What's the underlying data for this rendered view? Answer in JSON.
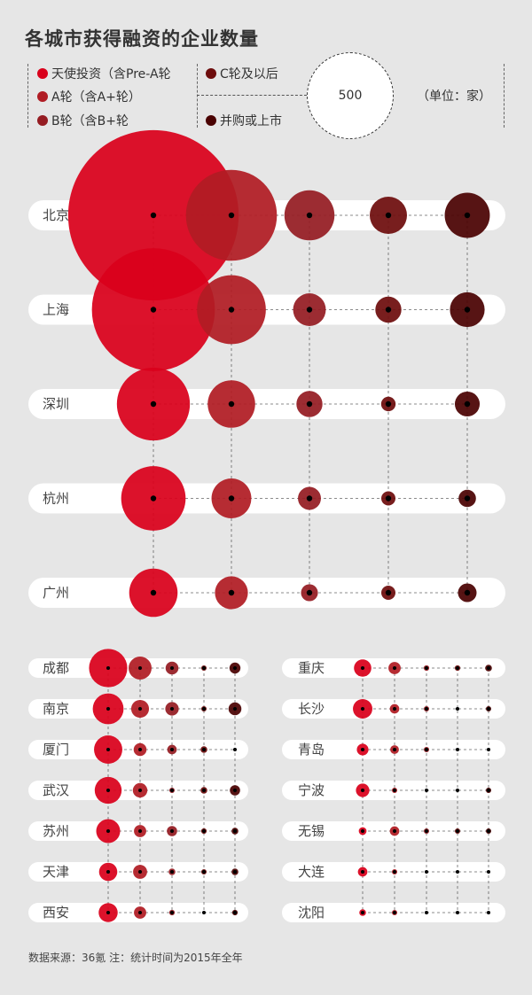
{
  "title": "各城市获得融资的企业数量",
  "legend": {
    "items": [
      {
        "label": "天使投资（含Pre-A轮",
        "color": "#d9001b"
      },
      {
        "label": "A轮（含A+轮）",
        "color": "#b01c24"
      },
      {
        "label": "B轮（含B+轮",
        "color": "#951c22"
      },
      {
        "label": "C轮及以后",
        "color": "#6e0d0d"
      },
      {
        "label": "并购或上市",
        "color": "#4a0202"
      }
    ],
    "reference_value": "500",
    "unit": "（单位：家）"
  },
  "footer": "数据来源：36氪  注：统计时间为2015年全年",
  "chart_data": {
    "type": "bubble",
    "reference_bubble_value": 500,
    "series": [
      "天使投资（含Pre-A轮",
      "A轮（含A+轮）",
      "B轮（含B+轮",
      "C轮及以后",
      "并购或上市"
    ],
    "colors": [
      "#d9001b",
      "#b01c24",
      "#951c22",
      "#6e0d0d",
      "#4a0202"
    ],
    "main_cities": [
      {
        "city": "北京",
        "values": [
          1925,
          548,
          166,
          92,
          135
        ]
      },
      {
        "city": "上海",
        "values": [
          1002,
          314,
          71,
          45,
          80
        ]
      },
      {
        "city": "深圳",
        "values": [
          353,
          149,
          45,
          14,
          41
        ]
      },
      {
        "city": "杭州",
        "values": [
          275,
          105,
          35,
          10,
          20
        ]
      },
      {
        "city": "广州",
        "values": [
          155,
          72,
          19,
          5,
          23
        ]
      }
    ],
    "small_cities_left": [
      {
        "city": "成都",
        "values": [
          97,
          35,
          11,
          1,
          8
        ]
      },
      {
        "city": "南京",
        "values": [
          63,
          21,
          12,
          1,
          11
        ]
      },
      {
        "city": "厦门",
        "values": [
          53,
          11,
          6,
          3,
          0
        ]
      },
      {
        "city": "武汉",
        "values": [
          48,
          14,
          1,
          3,
          7
        ]
      },
      {
        "city": "苏州",
        "values": [
          38,
          10,
          7,
          2,
          3
        ]
      },
      {
        "city": "天津",
        "values": [
          22,
          13,
          3,
          1,
          3
        ]
      },
      {
        "city": "西安",
        "values": [
          24,
          10,
          2,
          0,
          2
        ]
      }
    ],
    "small_cities_right": [
      {
        "city": "重庆",
        "values": [
          20,
          10,
          2,
          2,
          3
        ]
      },
      {
        "city": "长沙",
        "values": [
          25,
          6,
          1,
          0,
          1
        ]
      },
      {
        "city": "青岛",
        "values": [
          9,
          5,
          1,
          0,
          0
        ]
      },
      {
        "city": "宁波",
        "values": [
          12,
          1,
          0,
          0,
          1
        ]
      },
      {
        "city": "无锡",
        "values": [
          4,
          6,
          1,
          1,
          1
        ]
      },
      {
        "city": "大连",
        "values": [
          6,
          1,
          0,
          0,
          0
        ]
      },
      {
        "city": "沈阳",
        "values": [
          3,
          1,
          0,
          0,
          0
        ]
      }
    ]
  }
}
